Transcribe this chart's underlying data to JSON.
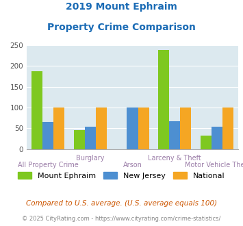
{
  "title_line1": "2019 Mount Ephraim",
  "title_line2": "Property Crime Comparison",
  "categories": [
    "All Property Crime",
    "Burglary",
    "Arson",
    "Larceny & Theft",
    "Motor Vehicle Theft"
  ],
  "mount_ephraim": [
    188,
    46,
    0,
    238,
    32
  ],
  "new_jersey": [
    65,
    54,
    100,
    68,
    54
  ],
  "national": [
    100,
    100,
    100,
    100,
    100
  ],
  "color_mount": "#7ec820",
  "color_nj": "#4d8fd1",
  "color_national": "#f5a623",
  "ylim": [
    0,
    250
  ],
  "yticks": [
    0,
    50,
    100,
    150,
    200,
    250
  ],
  "bg_color": "#dce9ef",
  "title_color": "#1a6bb5",
  "xlabel_color": "#9b7da8",
  "footer1": "Compared to U.S. average. (U.S. average equals 100)",
  "footer2": "© 2025 CityRating.com - https://www.cityrating.com/crime-statistics/",
  "footer1_color": "#cc5500",
  "footer2_color": "#888888",
  "legend_labels": [
    "Mount Ephraim",
    "New Jersey",
    "National"
  ]
}
